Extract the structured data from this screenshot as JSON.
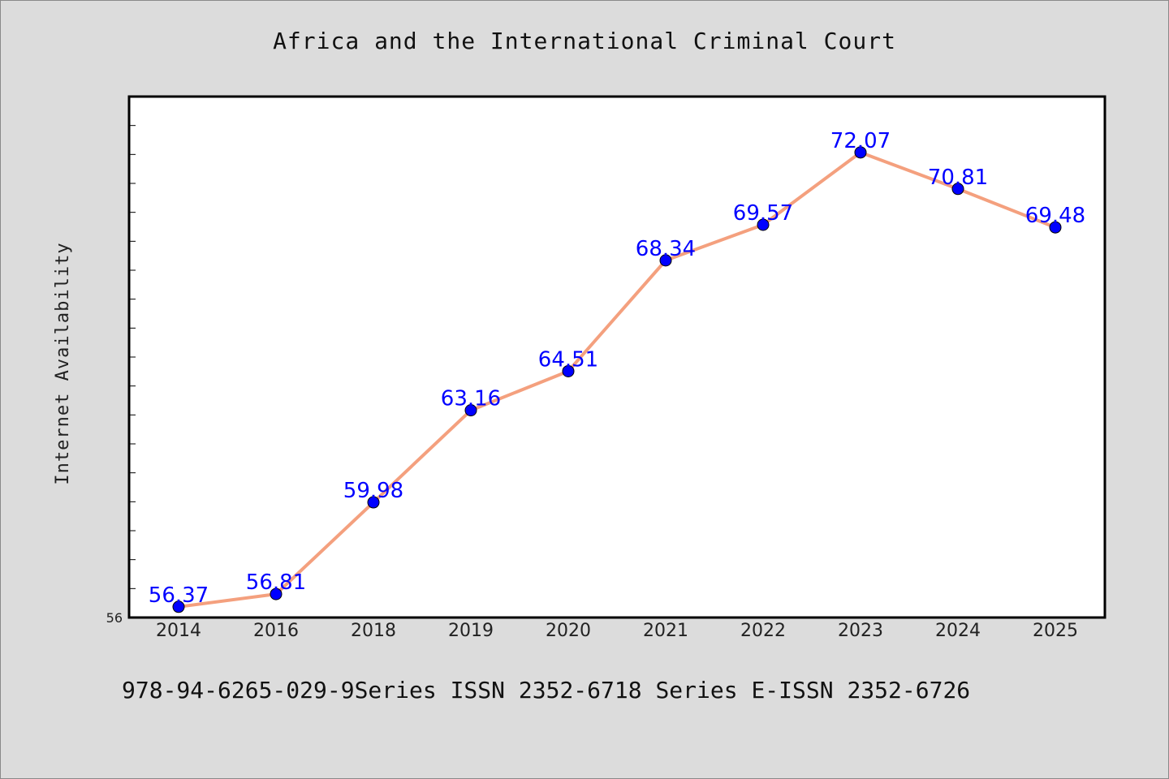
{
  "chart_data": {
    "type": "line",
    "title": "Africa and the International Criminal Court",
    "ylabel": "Internet Availability",
    "xlabel": "",
    "categories": [
      "2014",
      "2016",
      "2018",
      "2019",
      "2020",
      "2021",
      "2022",
      "2023",
      "2024",
      "2025"
    ],
    "values": [
      56.37,
      56.81,
      59.98,
      63.16,
      64.51,
      68.34,
      69.57,
      72.07,
      70.81,
      69.48
    ],
    "data_labels": [
      "56.37",
      "56.81",
      "59.98",
      "63.16",
      "64.51",
      "68.34",
      "69.57",
      "72.07",
      "70.81",
      "69.48"
    ],
    "ylim": [
      56,
      74
    ],
    "y_tick_labels": [
      "56"
    ],
    "grid": false,
    "line_color": "#f4a07e",
    "marker_color": "#0000ff",
    "label_color": "#0000ff"
  },
  "footer": {
    "text": "978-94-6265-029-9Series ISSN 2352-6718 Series E-ISSN 2352-6726"
  }
}
